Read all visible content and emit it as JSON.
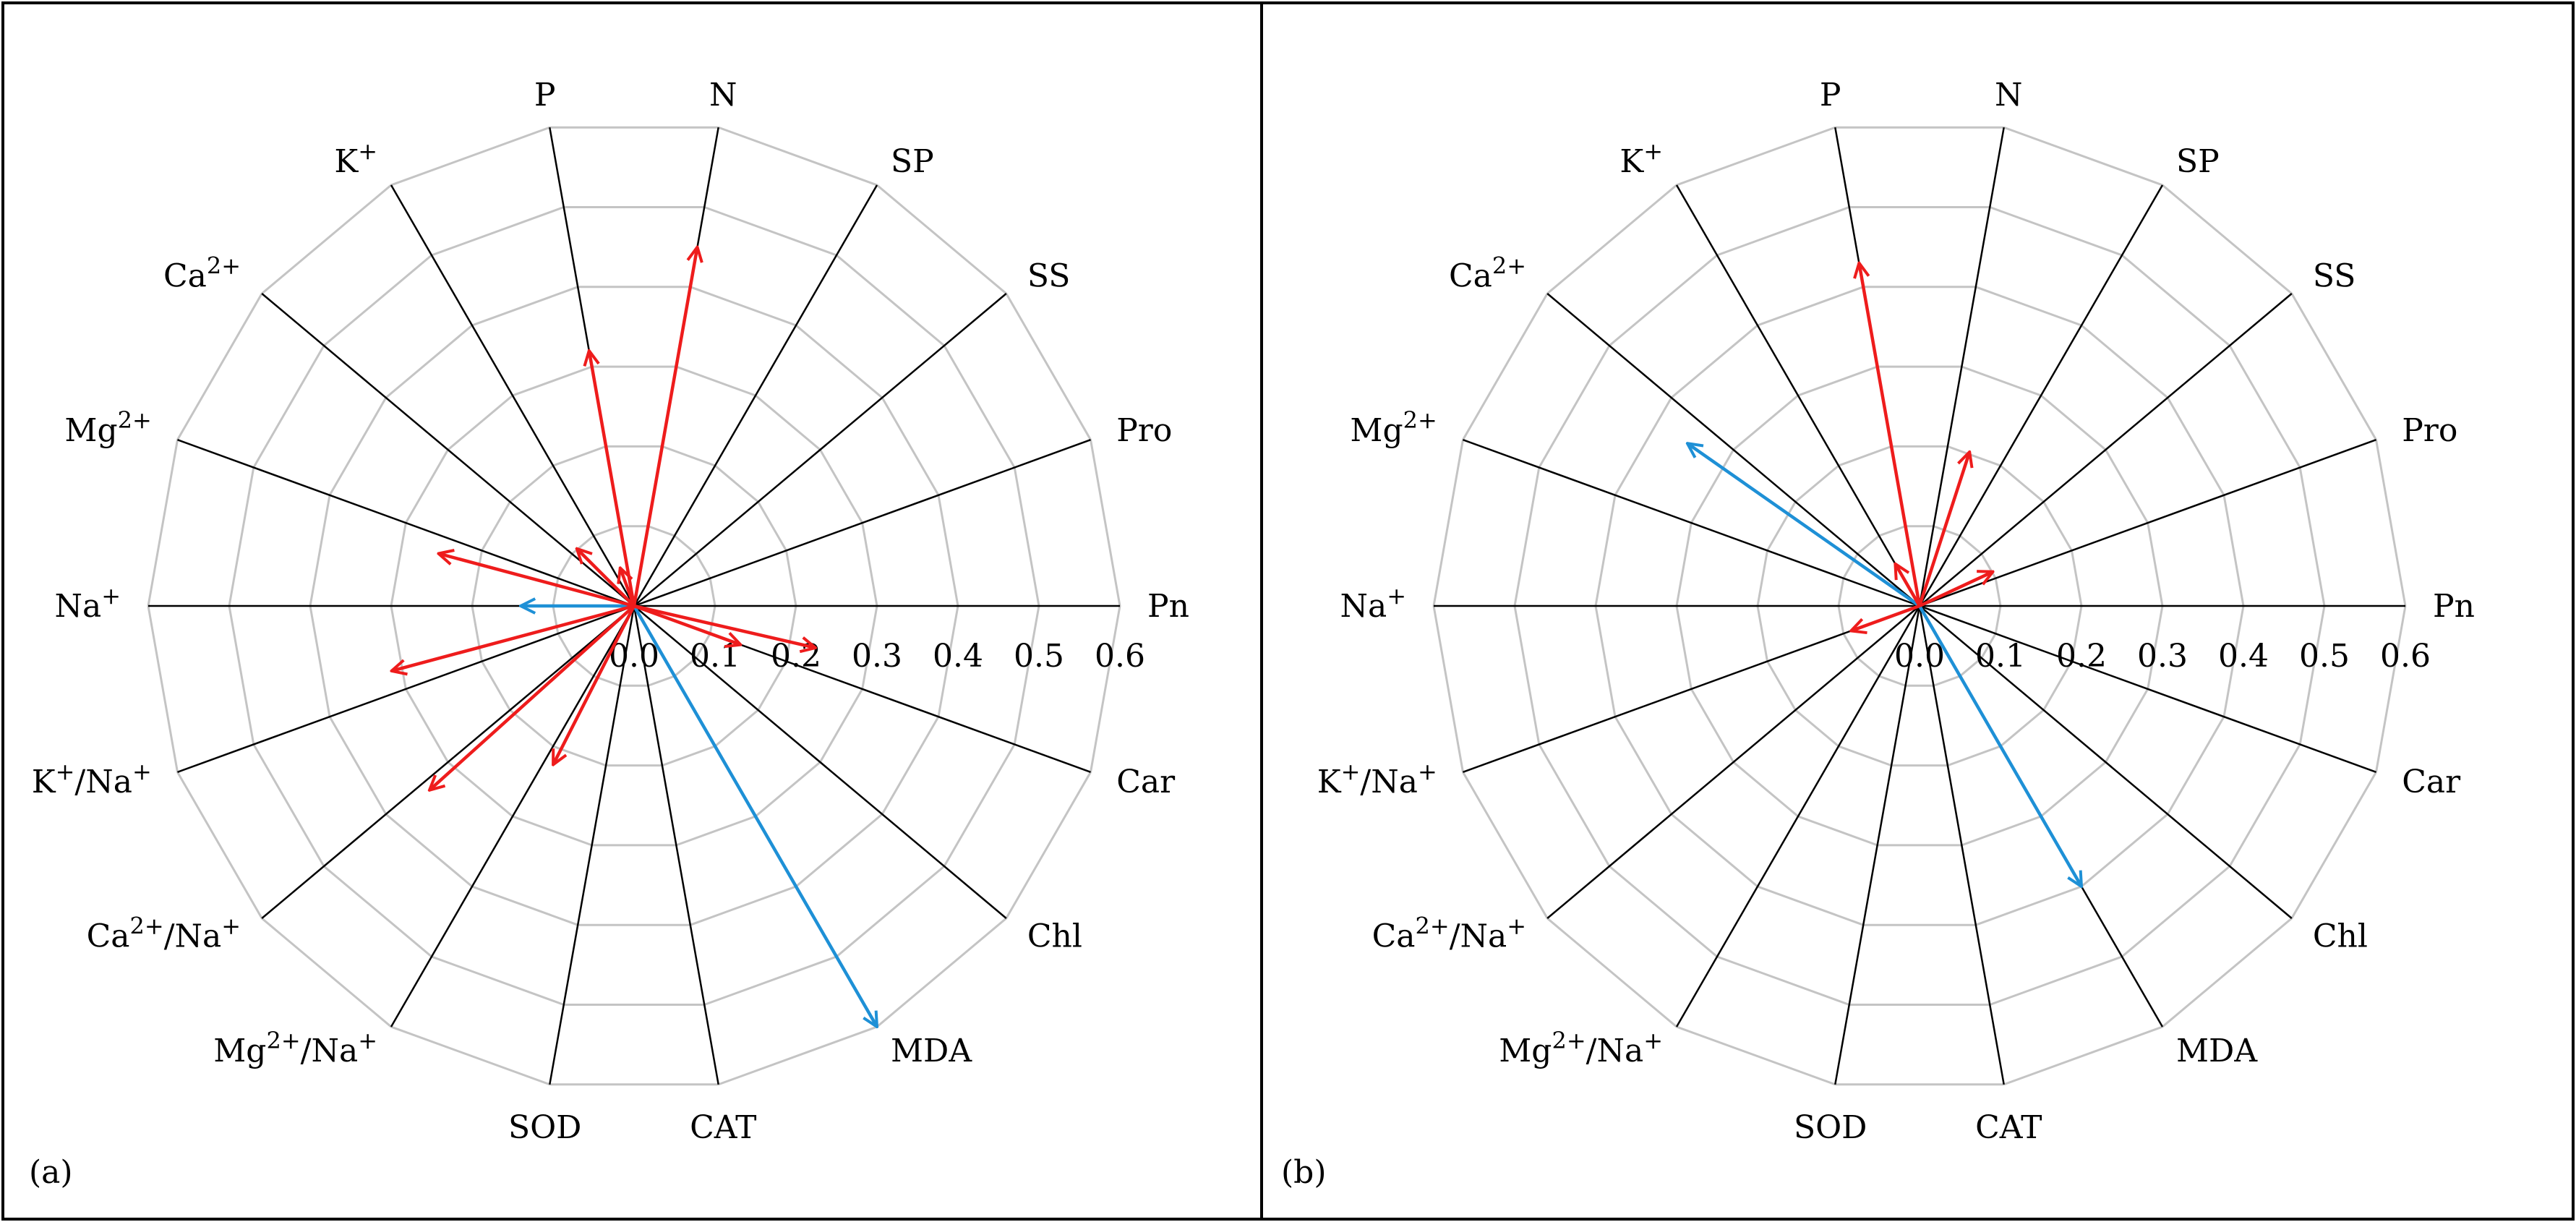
{
  "chart_data": [
    {
      "type": "radar-vectors",
      "panel_label": "(a)",
      "axes": [
        "Pn",
        "Pro",
        "SS",
        "SP",
        "N",
        "P",
        "K+",
        "Ca2+",
        "Mg2+",
        "Na+",
        "K+/Na+",
        "Ca2+/Na+",
        "Mg2+/Na+",
        "SOD",
        "CAT",
        "MDA",
        "Chl",
        "Car"
      ],
      "rlim": [
        0,
        0.6
      ],
      "ticks": [
        "0.0",
        "0.1",
        "0.2",
        "0.3",
        "0.4",
        "0.5",
        "0.6"
      ],
      "series": [
        {
          "name": "Pn",
          "value": 0.0,
          "sign": "positive"
        },
        {
          "name": "Pro",
          "value": 0.0,
          "sign": "positive"
        },
        {
          "name": "SS",
          "value": 0.0,
          "sign": "positive"
        },
        {
          "name": "SP",
          "value": 0.0,
          "sign": "positive"
        },
        {
          "name": "N",
          "value": 0.45,
          "sign": "positive"
        },
        {
          "name": "P",
          "value": 0.32,
          "sign": "positive"
        },
        {
          "name": "K+",
          "value": 0.0,
          "sign": "positive"
        },
        {
          "name": "Ca2+",
          "value": 0.0,
          "sign": "positive"
        },
        {
          "name": "Mg2+",
          "value": 0.0,
          "sign": "positive"
        },
        {
          "name": "Na+",
          "value": 0.14,
          "sign": "negative"
        },
        {
          "name": "K+/Na+",
          "value": 0.0,
          "sign": "positive"
        },
        {
          "name": "Ca2+/Na+",
          "value": 0.0,
          "sign": "positive"
        },
        {
          "name": "Mg2+/Na+",
          "value": 0.0,
          "sign": "positive"
        },
        {
          "name": "SOD",
          "value": 0.0,
          "sign": "positive"
        },
        {
          "name": "CAT",
          "value": 0.0,
          "sign": "positive"
        },
        {
          "name": "MDA",
          "value": 0.6,
          "sign": "negative"
        },
        {
          "name": "Chl",
          "value": 0.0,
          "sign": "positive"
        },
        {
          "name": "Car",
          "value": 0.0,
          "sign": "positive"
        }
      ],
      "extra_arrows": [
        {
          "angle_deg": -20,
          "value": 0.14,
          "sign": "positive"
        },
        {
          "angle_deg": 165,
          "value": 0.25,
          "sign": "positive"
        },
        {
          "angle_deg": 195,
          "value": 0.31,
          "sign": "positive"
        },
        {
          "angle_deg": 222,
          "value": 0.34,
          "sign": "positive"
        },
        {
          "angle_deg": 243,
          "value": 0.22,
          "sign": "positive"
        },
        {
          "angle_deg": 110,
          "value": 0.05,
          "sign": "positive"
        },
        {
          "angle_deg": 135,
          "value": 0.1,
          "sign": "positive"
        },
        {
          "angle_deg": -13,
          "value": 0.23,
          "sign": "positive"
        }
      ]
    },
    {
      "type": "radar-vectors",
      "panel_label": "(b)",
      "axes": [
        "Pn",
        "Pro",
        "SS",
        "SP",
        "N",
        "P",
        "K+",
        "Ca2+",
        "Mg2+",
        "Na+",
        "K+/Na+",
        "Ca2+/Na+",
        "Mg2+/Na+",
        "SOD",
        "CAT",
        "MDA",
        "Chl",
        "Car"
      ],
      "rlim": [
        0,
        0.6
      ],
      "ticks": [
        "0.0",
        "0.1",
        "0.2",
        "0.3",
        "0.4",
        "0.5",
        "0.6"
      ],
      "series": [
        {
          "name": "Pn",
          "value": 0.0,
          "sign": "positive"
        },
        {
          "name": "Pro",
          "value": 0.0,
          "sign": "positive"
        },
        {
          "name": "SS",
          "value": 0.0,
          "sign": "positive"
        },
        {
          "name": "SP",
          "value": 0.0,
          "sign": "positive"
        },
        {
          "name": "N",
          "value": 0.0,
          "sign": "positive"
        },
        {
          "name": "P",
          "value": 0.43,
          "sign": "positive"
        },
        {
          "name": "K+",
          "value": 0.0,
          "sign": "positive"
        },
        {
          "name": "Ca2+",
          "value": 0.0,
          "sign": "positive"
        },
        {
          "name": "Mg2+",
          "value": 0.0,
          "sign": "positive"
        },
        {
          "name": "Na+",
          "value": 0.0,
          "sign": "positive"
        },
        {
          "name": "K+/Na+",
          "value": 0.0,
          "sign": "positive"
        },
        {
          "name": "Ca2+/Na+",
          "value": 0.0,
          "sign": "positive"
        },
        {
          "name": "Mg2+/Na+",
          "value": 0.0,
          "sign": "positive"
        },
        {
          "name": "SOD",
          "value": 0.0,
          "sign": "positive"
        },
        {
          "name": "CAT",
          "value": 0.0,
          "sign": "positive"
        },
        {
          "name": "MDA",
          "value": 0.0,
          "sign": "positive"
        },
        {
          "name": "Chl",
          "value": 0.0,
          "sign": "positive"
        },
        {
          "name": "Car",
          "value": 0.0,
          "sign": "positive"
        }
      ],
      "extra_arrows": [
        {
          "angle_deg": 145,
          "value": 0.35,
          "sign": "negative"
        },
        {
          "angle_deg": -60,
          "value": 0.4,
          "sign": "negative"
        },
        {
          "angle_deg": 72,
          "value": 0.2,
          "sign": "positive"
        },
        {
          "angle_deg": 25,
          "value": 0.1,
          "sign": "positive"
        },
        {
          "angle_deg": 200,
          "value": 0.09,
          "sign": "positive"
        },
        {
          "angle_deg": 120,
          "value": 0.06,
          "sign": "positive"
        }
      ]
    }
  ],
  "labels": {
    "Pn": "Pn",
    "Pro": "Pro",
    "SS": "SS",
    "SP": "SP",
    "N": "N",
    "P": "P",
    "K_base": "K",
    "K_sup": "+",
    "Ca_base": "Ca",
    "Ca_sup": "2+",
    "Mg_base": "Mg",
    "Mg_sup": "2+",
    "Na_base": "Na",
    "Na_sup": "+",
    "slash": "/",
    "SOD": "SOD",
    "CAT": "CAT",
    "MDA": "MDA",
    "Chl": "Chl",
    "Car": "Car"
  },
  "colors": {
    "positive": "#ee1c1c",
    "negative": "#1e90d6",
    "grid": "#c4c4c4",
    "axis": "#000000",
    "frame": "#000000"
  }
}
